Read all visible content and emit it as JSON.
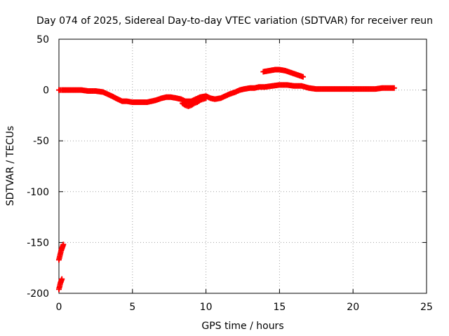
{
  "chart_data": {
    "type": "scatter",
    "title": "Day 074 of 2025, Sidereal Day-to-day VTEC variation (SDTVAR) for receiver reun",
    "xlabel": "GPS time / hours",
    "ylabel": "SDTVAR / TECUs",
    "xlim": [
      0,
      25
    ],
    "ylim": [
      -200,
      50
    ],
    "xticks": [
      0,
      5,
      10,
      15,
      20,
      25
    ],
    "yticks": [
      -200,
      -150,
      -100,
      -50,
      0,
      50
    ],
    "xtick_labels": [
      "0",
      "5",
      "10",
      "15",
      "20",
      "25"
    ],
    "ytick_labels": [
      "-200",
      "-150",
      "-100",
      "-50",
      "0",
      "50"
    ],
    "grid": true,
    "marker": "plus",
    "color": "#ff0000",
    "series": [
      {
        "name": "main",
        "x": [
          0.0,
          0.2,
          0.5,
          1.0,
          1.5,
          2.0,
          2.5,
          3.0,
          3.3,
          3.6,
          4.0,
          4.3,
          4.6,
          5.0,
          5.3,
          5.6,
          6.0,
          6.3,
          6.6,
          7.0,
          7.3,
          7.6,
          8.0,
          8.3,
          8.6,
          9.0,
          9.3,
          9.6,
          10.0,
          10.3,
          10.6,
          11.0,
          11.3,
          11.6,
          12.0,
          12.3,
          12.6,
          13.0,
          13.3,
          13.6,
          14.0,
          14.5,
          15.0,
          15.5,
          16.0,
          16.5,
          17.0,
          17.5,
          18.0,
          18.5,
          19.0,
          19.5,
          20.0,
          20.5,
          21.0,
          21.5,
          22.0,
          22.5,
          22.8
        ],
        "y": [
          0,
          0,
          0,
          0,
          0,
          -1,
          -1,
          -2,
          -4,
          -6,
          -9,
          -11,
          -11,
          -12,
          -12,
          -12,
          -12,
          -11,
          -10,
          -8,
          -7,
          -7,
          -8,
          -9,
          -11,
          -11,
          -9,
          -7,
          -6,
          -8,
          -9,
          -8,
          -6,
          -4,
          -2,
          0,
          1,
          2,
          2,
          3,
          3,
          4,
          5,
          5,
          4,
          4,
          2,
          1,
          1,
          1,
          1,
          1,
          1,
          1,
          1,
          1,
          2,
          2,
          2
        ]
      },
      {
        "name": "lower-branch",
        "x": [
          8.4,
          8.6,
          8.8,
          9.0,
          9.2,
          9.4,
          9.6,
          9.8,
          10.0
        ],
        "y": [
          -13,
          -15,
          -16,
          -15,
          -13,
          -12,
          -10,
          -9,
          -8
        ]
      },
      {
        "name": "upper-arc",
        "x": [
          13.9,
          14.3,
          14.7,
          15.0,
          15.4,
          15.8,
          16.2,
          16.6
        ],
        "y": [
          18,
          19,
          20,
          20,
          19,
          17,
          15,
          13
        ]
      },
      {
        "name": "outlier-upper",
        "x": [
          0.0,
          0.05,
          0.1,
          0.15,
          0.2,
          0.25,
          0.3
        ],
        "y": [
          -167,
          -164,
          -161,
          -158,
          -156,
          -154,
          -152
        ]
      },
      {
        "name": "outlier-lower",
        "x": [
          0.0,
          0.05,
          0.1,
          0.15,
          0.2
        ],
        "y": [
          -196,
          -193,
          -190,
          -188,
          -186
        ]
      }
    ]
  }
}
